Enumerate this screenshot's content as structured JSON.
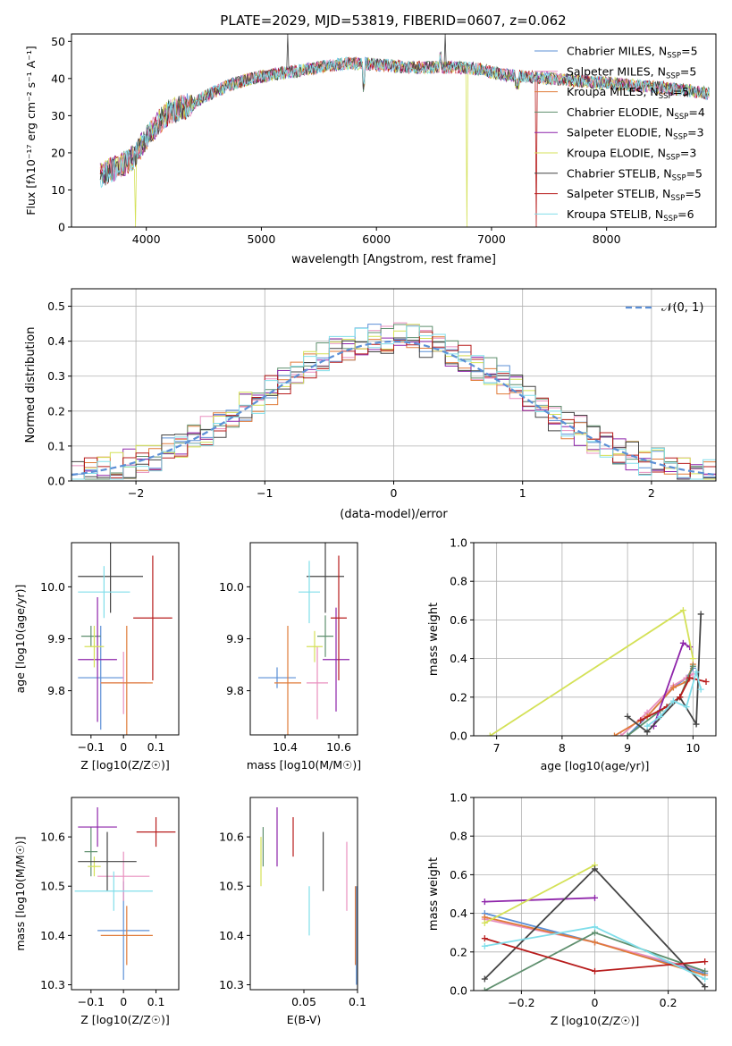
{
  "figure_title": "PLATE=2029, MJD=53819, FIBERID=0607, z=0.062",
  "colors": {
    "Chabrier MILES": "#5b8fd6",
    "Salpeter MILES": "#e88fbf",
    "Kroupa MILES": "#e07b39",
    "Chabrier ELODIE": "#5f8f6e",
    "Salpeter ELODIE": "#8e24aa",
    "Kroupa ELODIE": "#d4e157",
    "Chabrier STELIB": "#444444",
    "Salpeter STELIB": "#b71c1c",
    "Kroupa STELIB": "#80deea"
  },
  "legend_spectrum": [
    {
      "label": "Chabrier MILES, N",
      "sub": "SSP",
      "suffix": "=5"
    },
    {
      "label": "Salpeter MILES, N",
      "sub": "SSP",
      "suffix": "=5"
    },
    {
      "label": "Kroupa MILES, N",
      "sub": "SSP",
      "suffix": "=5"
    },
    {
      "label": "Chabrier ELODIE, N",
      "sub": "SSP",
      "suffix": "=4"
    },
    {
      "label": "Salpeter ELODIE, N",
      "sub": "SSP",
      "suffix": "=3"
    },
    {
      "label": "Kroupa ELODIE, N",
      "sub": "SSP",
      "suffix": "=3"
    },
    {
      "label": "Chabrier STELIB, N",
      "sub": "SSP",
      "suffix": "=5"
    },
    {
      "label": "Salpeter STELIB, N",
      "sub": "SSP",
      "suffix": "=5"
    },
    {
      "label": "Kroupa STELIB, N",
      "sub": "SSP",
      "suffix": "=6"
    }
  ],
  "chart_data": [
    {
      "type": "line",
      "ylabel": "Flux [fλ10⁻¹⁷ erg cm⁻² s⁻¹ A⁻¹]",
      "xlabel": "wavelength [Angstrom, rest frame]",
      "xlim": [
        3350,
        8950
      ],
      "ylim": [
        0,
        52
      ],
      "xticks": [
        4000,
        5000,
        6000,
        7000,
        8000
      ],
      "yticks": [
        0,
        10,
        20,
        30,
        40,
        50
      ],
      "continuum": {
        "x": [
          3600,
          3800,
          3900,
          4000,
          4100,
          4200,
          4300,
          4400,
          4500,
          4700,
          4900,
          5100,
          5300,
          5500,
          5700,
          5900,
          6100,
          6300,
          6500,
          6700,
          6900,
          7100,
          7300,
          7500,
          7700,
          7900,
          8100,
          8300,
          8500,
          8900
        ],
        "y": [
          14,
          17,
          19,
          24,
          28,
          31,
          32,
          33,
          35,
          38,
          40,
          41,
          42,
          43,
          44,
          44,
          43.5,
          43,
          43,
          43,
          42.5,
          41,
          40.5,
          40,
          39.5,
          39,
          38.5,
          38,
          37.5,
          36
        ]
      },
      "grid": false,
      "legend_position": "upper right"
    },
    {
      "type": "histogram",
      "xlabel": "(data-model)/error",
      "ylabel": "Normed distribution",
      "xlim": [
        -2.5,
        2.5
      ],
      "ylim": [
        0,
        0.55
      ],
      "xticks": [
        -2,
        -1,
        0,
        1,
        2
      ],
      "yticks": [
        0.0,
        0.1,
        0.2,
        0.3,
        0.4,
        0.5
      ],
      "grid": true,
      "reference_curve": {
        "name": "N(0,1)",
        "mean": 0,
        "sigma": 1
      },
      "legend_position": "upper right"
    },
    {
      "type": "scatter",
      "panel": "age vs Z",
      "xlabel": "Z [log10(Z/Z☉)]",
      "ylabel": "age [log10(age/yr)]",
      "xlim": [
        -0.16,
        0.17
      ],
      "ylim": [
        9.715,
        10.085
      ],
      "xticks": [
        -0.1,
        0.0,
        0.1
      ],
      "yticks": [
        9.8,
        9.9,
        10.0
      ],
      "points": [
        {
          "series": "Chabrier MILES",
          "x": -0.07,
          "y": 9.825,
          "xerr": 0.07,
          "yerr": 0.1
        },
        {
          "series": "Salpeter MILES",
          "x": 0.0,
          "y": 9.815,
          "xerr": 0.07,
          "yerr": 0.06
        },
        {
          "series": "Kroupa MILES",
          "x": 0.01,
          "y": 9.815,
          "xerr": 0.08,
          "yerr": 0.11
        },
        {
          "series": "Chabrier ELODIE",
          "x": -0.1,
          "y": 9.905,
          "xerr": 0.03,
          "yerr": 0.02
        },
        {
          "series": "Salpeter ELODIE",
          "x": -0.08,
          "y": 9.86,
          "xerr": 0.06,
          "yerr": 0.12
        },
        {
          "series": "Kroupa ELODIE",
          "x": -0.09,
          "y": 9.885,
          "xerr": 0.03,
          "yerr": 0.04
        },
        {
          "series": "Chabrier STELIB",
          "x": -0.04,
          "y": 10.02,
          "xerr": 0.1,
          "yerr": 0.07
        },
        {
          "series": "Salpeter STELIB",
          "x": 0.09,
          "y": 9.94,
          "xerr": 0.06,
          "yerr": 0.12
        },
        {
          "series": "Kroupa STELIB",
          "x": -0.06,
          "y": 9.99,
          "xerr": 0.08,
          "yerr": 0.05
        }
      ]
    },
    {
      "type": "scatter",
      "panel": "age vs mass",
      "xlabel": "mass [log10(M/M☉)]",
      "ylabel": "",
      "xlim": [
        10.27,
        10.67
      ],
      "ylim": [
        9.715,
        10.085
      ],
      "xticks": [
        10.4,
        10.6
      ],
      "yticks": [
        9.8,
        9.9,
        10.0
      ],
      "points": [
        {
          "series": "Chabrier MILES",
          "x": 10.37,
          "y": 9.825,
          "xerr": 0.07,
          "yerr": 0.02
        },
        {
          "series": "Salpeter MILES",
          "x": 10.52,
          "y": 9.815,
          "xerr": 0.04,
          "yerr": 0.07
        },
        {
          "series": "Kroupa MILES",
          "x": 10.41,
          "y": 9.815,
          "xerr": 0.05,
          "yerr": 0.11
        },
        {
          "series": "Chabrier ELODIE",
          "x": 10.55,
          "y": 9.905,
          "xerr": 0.03,
          "yerr": 0.04
        },
        {
          "series": "Salpeter ELODIE",
          "x": 10.59,
          "y": 9.86,
          "xerr": 0.05,
          "yerr": 0.1
        },
        {
          "series": "Kroupa ELODIE",
          "x": 10.51,
          "y": 9.885,
          "xerr": 0.03,
          "yerr": 0.03
        },
        {
          "series": "Chabrier STELIB",
          "x": 10.55,
          "y": 10.02,
          "xerr": 0.07,
          "yerr": 0.07
        },
        {
          "series": "Salpeter STELIB",
          "x": 10.6,
          "y": 9.94,
          "xerr": 0.03,
          "yerr": 0.12
        },
        {
          "series": "Kroupa STELIB",
          "x": 10.49,
          "y": 9.99,
          "xerr": 0.04,
          "yerr": 0.06
        }
      ]
    },
    {
      "type": "line",
      "panel": "mass weight vs age",
      "xlabel": "age [log10(age/yr)]",
      "ylabel": "mass weight",
      "xlim": [
        6.65,
        10.35
      ],
      "ylim": [
        0,
        1.0
      ],
      "xticks": [
        7,
        8,
        9,
        10
      ],
      "yticks": [
        0.0,
        0.2,
        0.4,
        0.6,
        0.8,
        1.0
      ],
      "grid": true,
      "series": [
        {
          "name": "Chabrier MILES",
          "x": [
            9.0,
            9.3,
            9.7,
            9.9,
            10.0
          ],
          "y": [
            0.0,
            0.1,
            0.25,
            0.3,
            0.35
          ]
        },
        {
          "name": "Salpeter MILES",
          "x": [
            8.9,
            9.3,
            9.7,
            9.9,
            10.0
          ],
          "y": [
            0.0,
            0.12,
            0.26,
            0.3,
            0.32
          ]
        },
        {
          "name": "Kroupa MILES",
          "x": [
            8.8,
            9.3,
            9.7,
            9.9,
            10.0
          ],
          "y": [
            0.0,
            0.1,
            0.25,
            0.28,
            0.37
          ]
        },
        {
          "name": "Chabrier ELODIE",
          "x": [
            9.0,
            9.5,
            9.8,
            10.0
          ],
          "y": [
            0.0,
            0.13,
            0.2,
            0.36
          ]
        },
        {
          "name": "Salpeter ELODIE",
          "x": [
            9.4,
            9.85,
            9.95
          ],
          "y": [
            0.05,
            0.48,
            0.46
          ]
        },
        {
          "name": "Kroupa ELODIE",
          "x": [
            6.9,
            9.85,
            10.0
          ],
          "y": [
            0.0,
            0.65,
            0.4
          ]
        },
        {
          "name": "Chabrier STELIB",
          "x": [
            9.0,
            9.3,
            9.8,
            10.05,
            10.12
          ],
          "y": [
            0.1,
            0.02,
            0.2,
            0.06,
            0.63
          ]
        },
        {
          "name": "Salpeter STELIB",
          "x": [
            9.2,
            9.6,
            9.8,
            9.95,
            10.2
          ],
          "y": [
            0.08,
            0.15,
            0.2,
            0.3,
            0.28
          ]
        },
        {
          "name": "Kroupa STELIB",
          "x": [
            9.3,
            9.5,
            9.7,
            9.9,
            10.05,
            10.12
          ],
          "y": [
            0.05,
            0.1,
            0.18,
            0.15,
            0.33,
            0.24
          ]
        }
      ]
    },
    {
      "type": "scatter",
      "panel": "mass vs Z",
      "xlabel": "Z [log10(Z/Z☉)]",
      "ylabel": "mass [log10(M/M☉)]",
      "xlim": [
        -0.16,
        0.17
      ],
      "ylim": [
        10.29,
        10.68
      ],
      "xticks": [
        -0.1,
        0.0,
        0.1
      ],
      "yticks": [
        10.3,
        10.4,
        10.5,
        10.6
      ],
      "points": [
        {
          "series": "Chabrier MILES",
          "x": 0.0,
          "y": 10.41,
          "xerr": 0.08,
          "yerr": 0.1
        },
        {
          "series": "Salpeter MILES",
          "x": 0.0,
          "y": 10.52,
          "xerr": 0.08,
          "yerr": 0.05
        },
        {
          "series": "Kroupa MILES",
          "x": 0.01,
          "y": 10.4,
          "xerr": 0.08,
          "yerr": 0.06
        },
        {
          "series": "Chabrier ELODIE",
          "x": -0.1,
          "y": 10.57,
          "xerr": 0.02,
          "yerr": 0.05
        },
        {
          "series": "Salpeter ELODIE",
          "x": -0.08,
          "y": 10.62,
          "xerr": 0.06,
          "yerr": 0.04
        },
        {
          "series": "Kroupa ELODIE",
          "x": -0.09,
          "y": 10.54,
          "xerr": 0.02,
          "yerr": 0.02
        },
        {
          "series": "Chabrier STELIB",
          "x": -0.05,
          "y": 10.55,
          "xerr": 0.09,
          "yerr": 0.06
        },
        {
          "series": "Salpeter STELIB",
          "x": 0.1,
          "y": 10.61,
          "xerr": 0.06,
          "yerr": 0.03
        },
        {
          "series": "Kroupa STELIB",
          "x": -0.03,
          "y": 10.49,
          "xerr": 0.12,
          "yerr": 0.04
        }
      ]
    },
    {
      "type": "scatter",
      "panel": "mass vs E(B-V)",
      "xlabel": "E(B-V)",
      "ylabel": "",
      "xlim": [
        0.0,
        0.1
      ],
      "ylim": [
        10.29,
        10.68
      ],
      "xticks": [
        0.05,
        0.1
      ],
      "yticks": [
        10.3,
        10.4,
        10.5,
        10.6
      ],
      "points": [
        {
          "series": "Chabrier MILES",
          "x": 0.099,
          "y": 10.4,
          "xerr": 0,
          "yerr": 0.1
        },
        {
          "series": "Salpeter MILES",
          "x": 0.09,
          "y": 10.52,
          "xerr": 0,
          "yerr": 0.07
        },
        {
          "series": "Kroupa MILES",
          "x": 0.098,
          "y": 10.42,
          "xerr": 0,
          "yerr": 0.08
        },
        {
          "series": "Chabrier ELODIE",
          "x": 0.012,
          "y": 10.58,
          "xerr": 0,
          "yerr": 0.04
        },
        {
          "series": "Salpeter ELODIE",
          "x": 0.025,
          "y": 10.6,
          "xerr": 0,
          "yerr": 0.06
        },
        {
          "series": "Kroupa ELODIE",
          "x": 0.01,
          "y": 10.55,
          "xerr": 0,
          "yerr": 0.05
        },
        {
          "series": "Chabrier STELIB",
          "x": 0.068,
          "y": 10.55,
          "xerr": 0,
          "yerr": 0.06
        },
        {
          "series": "Salpeter STELIB",
          "x": 0.04,
          "y": 10.6,
          "xerr": 0,
          "yerr": 0.04
        },
        {
          "series": "Kroupa STELIB",
          "x": 0.055,
          "y": 10.45,
          "xerr": 0,
          "yerr": 0.05
        }
      ]
    },
    {
      "type": "line",
      "panel": "mass weight vs Z",
      "xlabel": "Z [log10(Z/Z☉)]",
      "ylabel": "mass weight",
      "xlim": [
        -0.33,
        0.33
      ],
      "ylim": [
        0,
        1.0
      ],
      "xticks": [
        -0.2,
        0.0,
        0.2
      ],
      "yticks": [
        0.0,
        0.2,
        0.4,
        0.6,
        0.8,
        1.0
      ],
      "grid": true,
      "series": [
        {
          "name": "Chabrier MILES",
          "x": [
            -0.3,
            0.0,
            0.3
          ],
          "y": [
            0.4,
            0.25,
            0.09
          ]
        },
        {
          "name": "Salpeter MILES",
          "x": [
            -0.3,
            0.0,
            0.3
          ],
          "y": [
            0.37,
            0.25,
            0.1
          ]
        },
        {
          "name": "Kroupa MILES",
          "x": [
            -0.3,
            0.0,
            0.3
          ],
          "y": [
            0.38,
            0.25,
            0.08
          ]
        },
        {
          "name": "Chabrier ELODIE",
          "x": [
            -0.3,
            0.0,
            0.3
          ],
          "y": [
            0.0,
            0.3,
            0.1
          ]
        },
        {
          "name": "Salpeter ELODIE",
          "x": [
            -0.3,
            0.0
          ],
          "y": [
            0.46,
            0.48
          ]
        },
        {
          "name": "Kroupa ELODIE",
          "x": [
            -0.3,
            0.0
          ],
          "y": [
            0.35,
            0.65
          ]
        },
        {
          "name": "Chabrier STELIB",
          "x": [
            -0.3,
            0.0,
            0.3
          ],
          "y": [
            0.06,
            0.63,
            0.02
          ]
        },
        {
          "name": "Salpeter STELIB",
          "x": [
            -0.3,
            0.0,
            0.3
          ],
          "y": [
            0.27,
            0.1,
            0.15
          ]
        },
        {
          "name": "Kroupa STELIB",
          "x": [
            -0.3,
            0.0,
            0.3
          ],
          "y": [
            0.23,
            0.33,
            0.06
          ]
        }
      ]
    }
  ]
}
